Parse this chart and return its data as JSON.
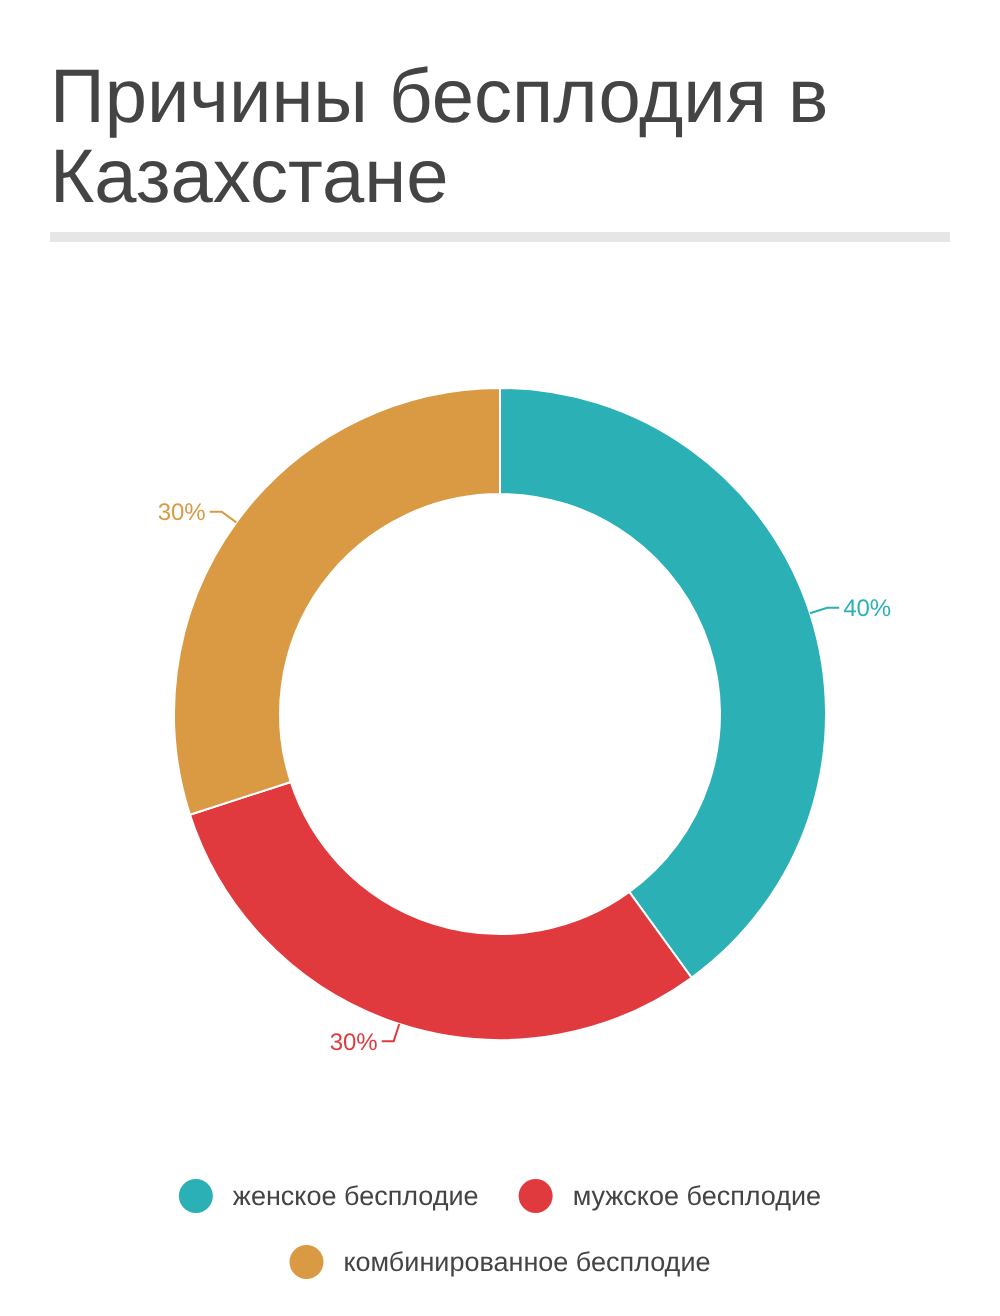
{
  "chart_data": {
    "type": "donut",
    "title": "Причины бесплодия в Казахстане",
    "categories": [
      "женское бесплодие",
      "мужское бесплодие",
      "комбинированное бесплодие"
    ],
    "values": [
      40,
      30,
      30
    ],
    "colors": [
      "#2ab0b5",
      "#e0393e",
      "#d99a43"
    ],
    "value_labels": [
      "40%",
      "30%",
      "30%"
    ],
    "legend": "bottom"
  }
}
